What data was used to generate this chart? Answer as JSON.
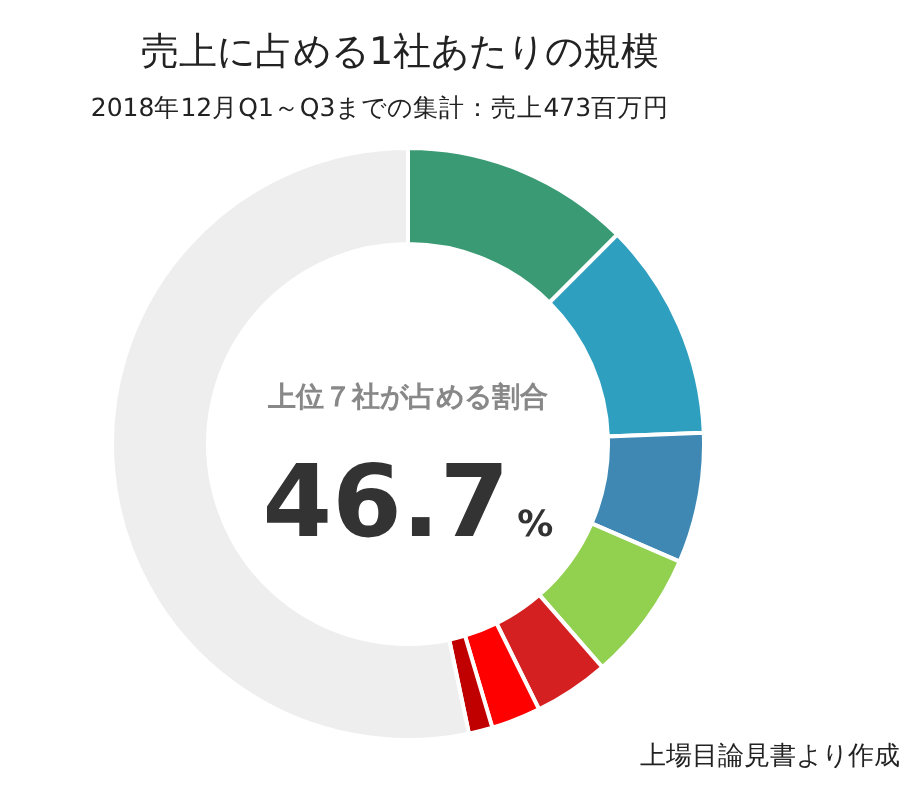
{
  "chart_data": {
    "type": "donut",
    "title": "売上に占める1社あたりの規模",
    "subtitle": "2018年12月Q1～Q3までの集計：売上473百万円",
    "categories": [
      null,
      null,
      null,
      null,
      null,
      null,
      null,
      null
    ],
    "values": [
      12.5,
      11.9,
      7.1,
      7.1,
      4.1,
      2.7,
      1.3,
      53.3
    ],
    "colors": [
      "#3a9a74",
      "#2f9fbf",
      "#3f88b3",
      "#92d050",
      "#d42020",
      "#ff0000",
      "#c00000",
      "#eeeeee"
    ],
    "annotations": [
      "上位７社が占める割合",
      "46.7%",
      "上場目論見書より作成"
    ]
  }
}
